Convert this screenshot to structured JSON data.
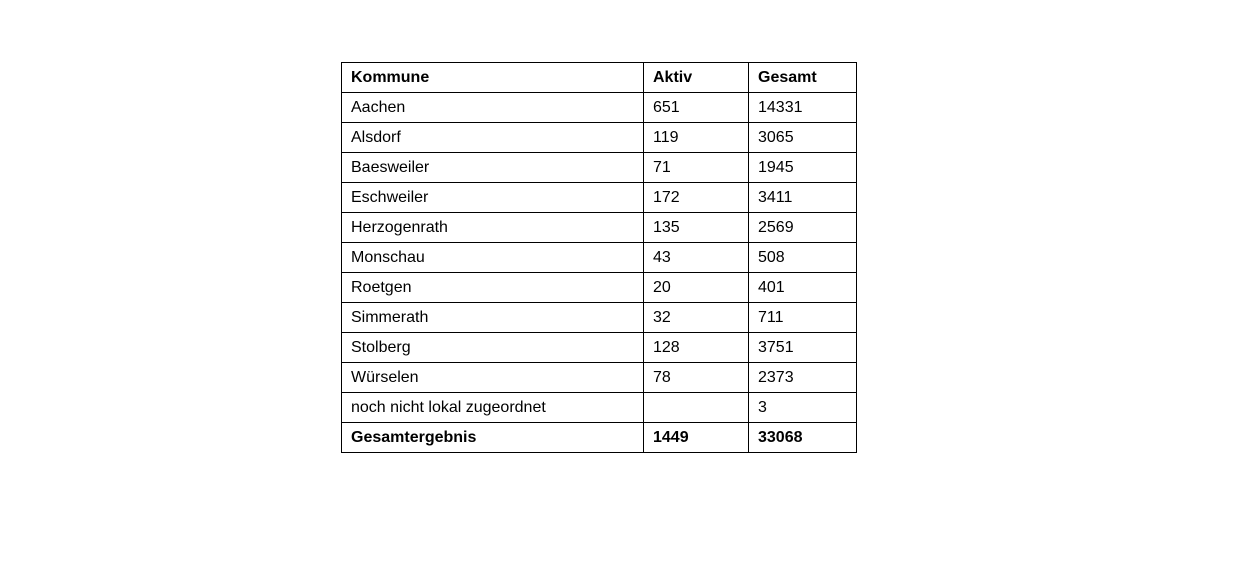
{
  "page": {
    "background_color": "#ffffff",
    "border_color": "#000000",
    "text_color": "#000000"
  },
  "table": {
    "headers": [
      "Kommune",
      "Aktiv",
      "Gesamt"
    ],
    "rows": [
      [
        "Aachen",
        "651",
        "14331"
      ],
      [
        "Alsdorf",
        "119",
        "3065"
      ],
      [
        "Baesweiler",
        "71",
        "1945"
      ],
      [
        "Eschweiler",
        "172",
        "3411"
      ],
      [
        "Herzogenrath",
        "135",
        "2569"
      ],
      [
        "Monschau",
        "43",
        "508"
      ],
      [
        "Roetgen",
        "20",
        "401"
      ],
      [
        "Simmerath",
        "32",
        "711"
      ],
      [
        "Stolberg",
        "128",
        "3751"
      ],
      [
        "Würselen",
        "78",
        "2373"
      ],
      [
        "noch nicht lokal zugeordnet",
        "",
        "3"
      ]
    ],
    "total_row": [
      "Gesamtergebnis",
      "1449",
      "33068"
    ]
  }
}
